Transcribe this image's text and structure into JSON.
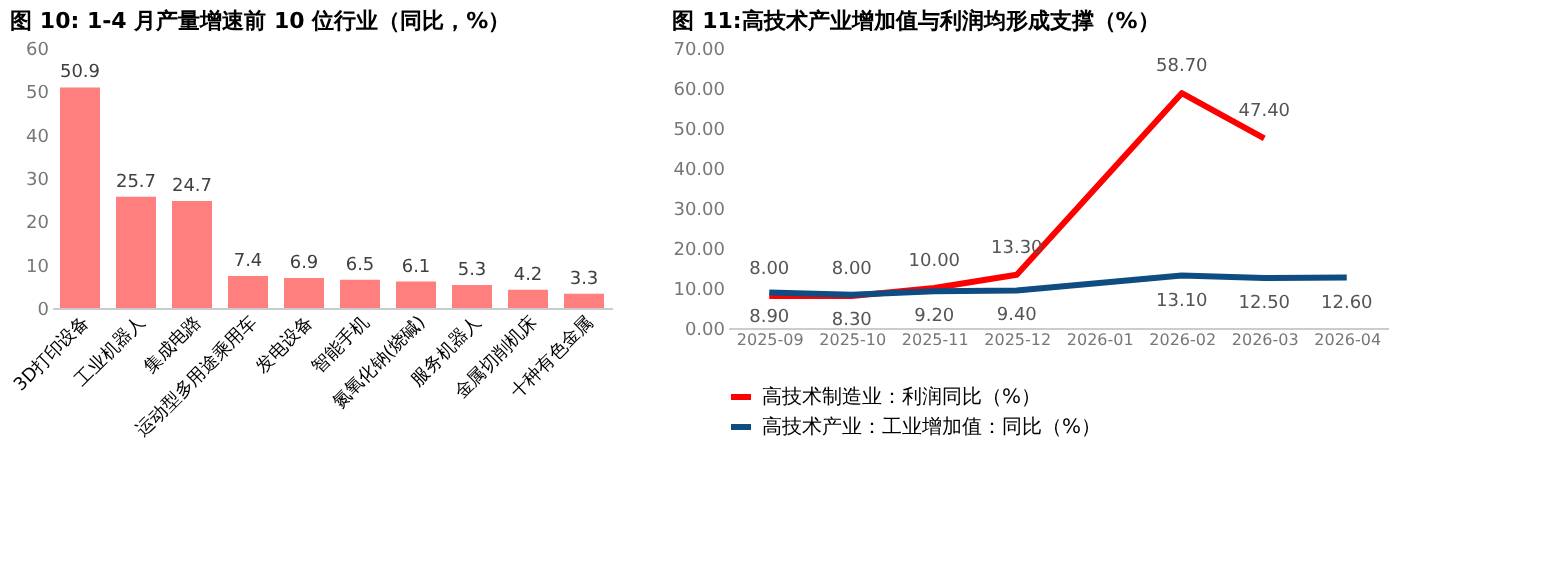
{
  "chart_data": [
    {
      "type": "bar",
      "title": "图 10: 1-4 月产量增速前 10 位行业（同比，%）",
      "categories": [
        "3D打印设备",
        "工业机器人",
        "集成电路",
        "运动型多用途乘用车",
        "发电设备",
        "智能手机",
        "氮氧化钠(烧碱)",
        "服务机器人",
        "金属切削机床",
        "十种有色金属"
      ],
      "values": [
        50.9,
        25.7,
        24.7,
        7.4,
        6.9,
        6.5,
        6.1,
        5.3,
        4.2,
        3.3
      ],
      "color": "#ff7f7f",
      "ylim": [
        0,
        60
      ],
      "yticks": [
        0,
        10,
        20,
        30,
        40,
        50,
        60
      ],
      "data_labels": true,
      "grid": false
    },
    {
      "type": "line",
      "title": "图 11:高技术产业增加值与利润均形成支撑（%）",
      "categories": [
        "2025-09",
        "2025-10",
        "2025-11",
        "2025-12",
        "2026-01",
        "2026-02",
        "2026-03",
        "2026-04"
      ],
      "series": [
        {
          "name": "高技术制造业：利润同比（%）",
          "color": "#ff0000",
          "values": [
            8.0,
            8.0,
            10.0,
            13.3,
            null,
            58.7,
            47.4,
            null
          ],
          "value_labels": [
            "8.00",
            "8.00",
            "10.00",
            "13.30",
            null,
            "58.70",
            "47.40",
            null
          ]
        },
        {
          "name": "高技术产业：工业增加值：同比（%）",
          "color": "#0f4c81",
          "values": [
            8.9,
            8.3,
            9.2,
            9.4,
            null,
            13.1,
            12.5,
            12.6
          ],
          "value_labels": [
            "8.90",
            "8.30",
            "9.20",
            "9.40",
            null,
            "13.10",
            "12.50",
            "12.60"
          ]
        }
      ],
      "ylim": [
        0,
        70
      ],
      "yticks": [
        {
          "value": 0,
          "label": "0.00"
        },
        {
          "value": 10,
          "label": "10.00"
        },
        {
          "value": 20,
          "label": "20.00"
        },
        {
          "value": 30,
          "label": "30.00"
        },
        {
          "value": 40,
          "label": "40.00"
        },
        {
          "value": 50,
          "label": "50.00"
        },
        {
          "value": 60,
          "label": "60.00"
        },
        {
          "value": 70,
          "label": "70.00"
        }
      ],
      "grid": false,
      "legend": "bottom",
      "marker": "none",
      "line_style": "solid"
    }
  ]
}
